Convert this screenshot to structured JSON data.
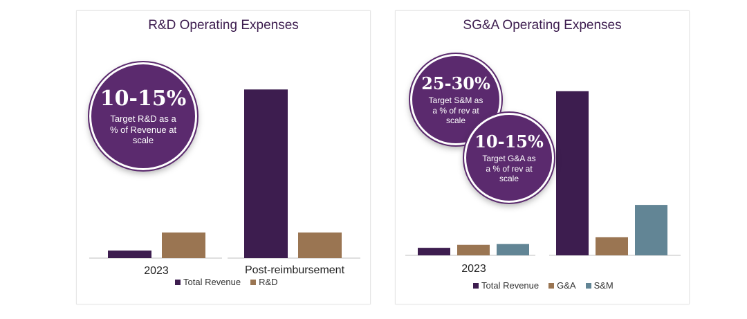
{
  "colors": {
    "total_revenue": "#3d1d4f",
    "rd": "#9a7552",
    "ga": "#9a7552",
    "sm": "#628595",
    "bubble": "#5b2a6e"
  },
  "chart_data": [
    {
      "type": "bar",
      "title": "R&D Operating Expenses",
      "categories": [
        "2023",
        "Post-reimbursement"
      ],
      "series": [
        {
          "name": "Total Revenue",
          "values": [
            1.0,
            22.4
          ]
        },
        {
          "name": "R&D",
          "values": [
            3.4,
            3.4
          ]
        }
      ],
      "ylim": [
        0,
        25
      ],
      "grid": false,
      "legend": "bottom",
      "annotation": {
        "big": "10-15%",
        "text": "Target R&D as a % of Revenue at scale"
      }
    },
    {
      "type": "bar",
      "title": "SG&A Operating Expenses",
      "categories": [
        "2023",
        ""
      ],
      "series": [
        {
          "name": "Total Revenue",
          "values": [
            1.0,
            21.8
          ]
        },
        {
          "name": "G&A",
          "values": [
            1.4,
            2.4
          ]
        },
        {
          "name": "S&M",
          "values": [
            1.5,
            6.7
          ]
        }
      ],
      "ylim": [
        0,
        25
      ],
      "grid": false,
      "legend": "bottom",
      "annotations": [
        {
          "big": "25-30%",
          "text": "Target S&M as a % of rev at scale"
        },
        {
          "big": "10-15%",
          "text": "Target G&A as a % of rev at scale"
        }
      ]
    }
  ]
}
